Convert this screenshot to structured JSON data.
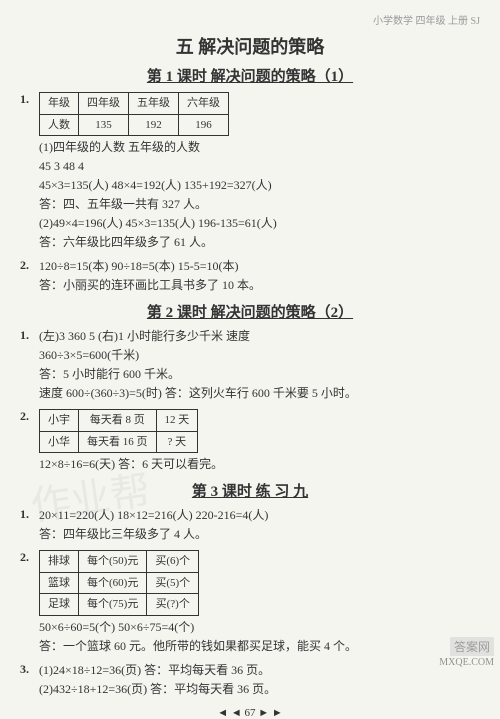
{
  "header": {
    "meta": "小学数学  四年级  上册  SJ"
  },
  "unit": {
    "title": "五  解决问题的策略"
  },
  "lesson1": {
    "title": "第 1 课时  解决问题的策略（1）",
    "q1": {
      "num": "1.",
      "table": {
        "r1c1": "年级",
        "r1c2": "四年级",
        "r1c3": "五年级",
        "r1c4": "六年级",
        "r2c1": "人数",
        "r2c2": "135",
        "r2c3": "192",
        "r2c4": "196"
      },
      "l1": "(1)四年级的人数  五年级的人数",
      "l2": "45  3  48  4",
      "l3": "45×3=135(人)  48×4=192(人)  135+192=327(人)",
      "l4": "答：四、五年级一共有 327 人。",
      "l5": "(2)49×4=196(人)  45×3=135(人)  196-135=61(人)",
      "l6": "答：六年级比四年级多了 61 人。"
    },
    "q2": {
      "num": "2.",
      "l1": "120÷8=15(本)  90÷18=5(本)  15-5=10(本)",
      "l2": "答：小丽买的连环画比工具书多了 10 本。"
    }
  },
  "lesson2": {
    "title": "第 2 课时  解决问题的策略（2）",
    "q1": {
      "num": "1.",
      "l1": "(左)3  360  5  (右)1 小时能行多少千米  速度",
      "l2": "360÷3×5=600(千米)",
      "l3": "答：5 小时能行 600 千米。",
      "l4": "速度  600÷(360÷3)=5(时)  答：这列火车行 600 千米要 5 小时。"
    },
    "q2": {
      "num": "2.",
      "table": {
        "r1c1": "小宇",
        "r1c2": "每天看 8 页",
        "r1c3": "12 天",
        "r2c1": "小华",
        "r2c2": "每天看 16 页",
        "r2c3": "? 天"
      },
      "l1": "12×8÷16=6(天)  答：6 天可以看完。"
    }
  },
  "lesson3": {
    "title": "第 3 课时  练 习  九",
    "q1": {
      "num": "1.",
      "l1": "20×11=220(人)  18×12=216(人)  220-216=4(人)",
      "l2": "答：四年级比三年级多了 4 人。"
    },
    "q2": {
      "num": "2.",
      "table": {
        "r1c1": "排球",
        "r1c2": "每个(50)元",
        "r1c3": "买(6)个",
        "r2c1": "篮球",
        "r2c2": "每个(60)元",
        "r2c3": "买(5)个",
        "r3c1": "足球",
        "r3c2": "每个(75)元",
        "r3c3": "买(?)个"
      },
      "l1": "50×6÷60=5(个)  50×6÷75=4(个)",
      "l2": "答：一个篮球 60 元。他所带的钱如果都买足球，能买 4 个。"
    },
    "q3": {
      "num": "3.",
      "l1": "(1)24×18÷12=36(页)  答：平均每天看 36 页。",
      "l2": "(2)432÷18+12=36(页)  答：平均每天看 36 页。"
    }
  },
  "footer": {
    "page": "◄ ◄ 67 ► ►"
  },
  "watermarks": {
    "faint": "作业帮",
    "brand": "答案网",
    "site": "MXQE.COM"
  }
}
